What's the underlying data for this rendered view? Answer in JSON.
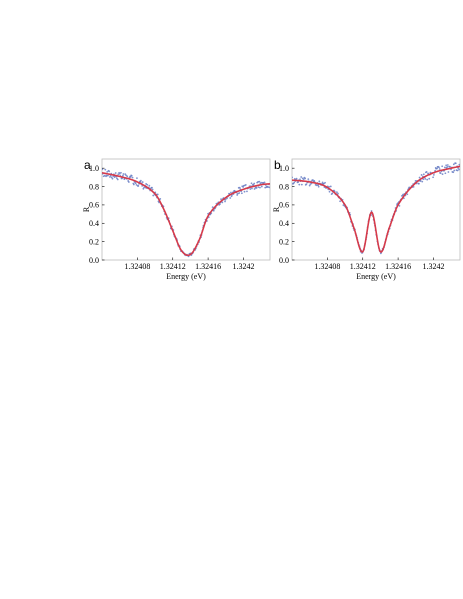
{
  "chart_data": [
    {
      "panel_label": "a",
      "type": "scatter",
      "xlabel": "Energy (eV)",
      "ylabel": "R",
      "xlim": [
        1.32404,
        1.32423
      ],
      "ylim": [
        0.0,
        1.1
      ],
      "x_ticks": [
        1.32408,
        1.32412,
        1.32416,
        1.3242
      ],
      "x_tick_labels": [
        "1.32408",
        "1.32412",
        "1.32416",
        "1.3242"
      ],
      "y_ticks": [
        0.0,
        0.2,
        0.4,
        0.6,
        0.8,
        1.0
      ],
      "y_tick_labels": [
        "0.0",
        "0.2",
        "0.4",
        "0.6",
        "0.8",
        "1.0"
      ],
      "grid": false,
      "series": [
        {
          "kind": "data-points",
          "color": "#6a7fc4",
          "x": [
            1.32404,
            1.32406,
            1.32408,
            1.3241,
            1.32411,
            1.32412,
            1.32413,
            1.32414,
            1.32415,
            1.32416,
            1.32418,
            1.3242,
            1.32422,
            1.32423
          ],
          "y": [
            0.95,
            0.91,
            0.85,
            0.72,
            0.55,
            0.32,
            0.1,
            0.06,
            0.22,
            0.48,
            0.68,
            0.77,
            0.82,
            0.83
          ]
        },
        {
          "kind": "fit",
          "color": "#d63a4a",
          "x": [
            1.32404,
            1.32406,
            1.32408,
            1.3241,
            1.32411,
            1.32412,
            1.32413,
            1.32414,
            1.32415,
            1.32416,
            1.32418,
            1.3242,
            1.32422,
            1.32423
          ],
          "y": [
            0.95,
            0.91,
            0.85,
            0.72,
            0.55,
            0.32,
            0.1,
            0.06,
            0.22,
            0.48,
            0.68,
            0.77,
            0.82,
            0.83
          ]
        }
      ]
    },
    {
      "panel_label": "b",
      "type": "scatter",
      "xlabel": "Energy (eV)",
      "ylabel": "R",
      "xlim": [
        1.32404,
        1.32423
      ],
      "ylim": [
        0.0,
        1.1
      ],
      "x_ticks": [
        1.32408,
        1.32412,
        1.32416,
        1.3242
      ],
      "x_tick_labels": [
        "1.32408",
        "1.32412",
        "1.32416",
        "1.3242"
      ],
      "y_ticks": [
        0.0,
        0.2,
        0.4,
        0.6,
        0.8,
        1.0
      ],
      "y_tick_labels": [
        "0.0",
        "0.2",
        "0.4",
        "0.6",
        "0.8",
        "1.0"
      ],
      "grid": false,
      "series": [
        {
          "kind": "data-points",
          "color": "#6a7fc4",
          "x": [
            1.32404,
            1.32406,
            1.32408,
            1.3241,
            1.32411,
            1.32412,
            1.32413,
            1.32414,
            1.32415,
            1.32416,
            1.32418,
            1.3242,
            1.32422,
            1.32423
          ],
          "y": [
            0.87,
            0.85,
            0.79,
            0.6,
            0.35,
            0.09,
            0.52,
            0.09,
            0.35,
            0.6,
            0.84,
            0.95,
            1.0,
            1.02
          ]
        },
        {
          "kind": "fit",
          "color": "#d63a4a",
          "x": [
            1.32404,
            1.32406,
            1.32408,
            1.3241,
            1.32411,
            1.32412,
            1.32413,
            1.32414,
            1.32415,
            1.32416,
            1.32418,
            1.3242,
            1.32422,
            1.32423
          ],
          "y": [
            0.87,
            0.85,
            0.79,
            0.6,
            0.35,
            0.09,
            0.52,
            0.09,
            0.35,
            0.6,
            0.84,
            0.95,
            1.0,
            1.02
          ]
        }
      ]
    }
  ]
}
